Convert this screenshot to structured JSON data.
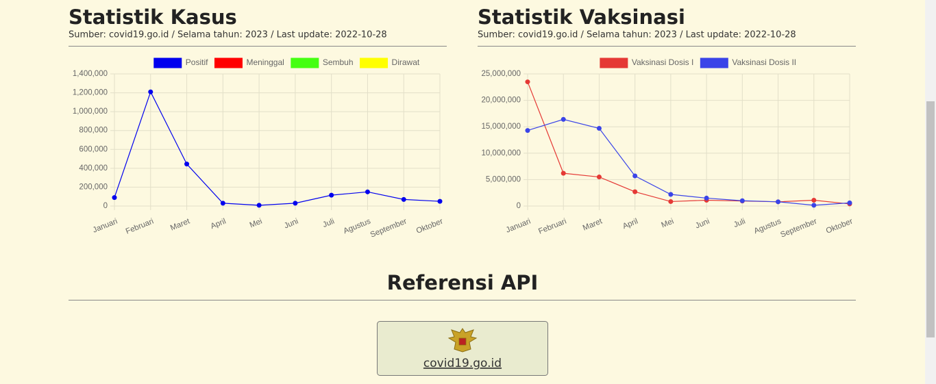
{
  "chart_data": [
    {
      "type": "line",
      "title": "Statistik Kasus",
      "subtitle": "Sumber: covid19.go.id / Selama tahun: 2023 / Last update: 2022-10-28",
      "categories": [
        "Januari",
        "Februari",
        "Maret",
        "April",
        "Mei",
        "Juni",
        "Juli",
        "Agustus",
        "September",
        "Oktober"
      ],
      "series": [
        {
          "name": "Positif",
          "color": "#0000ee",
          "values": [
            90000,
            1210000,
            445000,
            30000,
            8000,
            30000,
            115000,
            150000,
            70000,
            50000
          ]
        },
        {
          "name": "Meninggal",
          "color": "#ff0000",
          "values": [
            null,
            null,
            null,
            null,
            null,
            null,
            null,
            null,
            null,
            null
          ]
        },
        {
          "name": "Sembuh",
          "color": "#44ff11",
          "values": [
            null,
            null,
            null,
            null,
            null,
            null,
            null,
            null,
            null,
            null
          ]
        },
        {
          "name": "Dirawat",
          "color": "#ffff00",
          "values": [
            null,
            null,
            null,
            null,
            null,
            null,
            null,
            null,
            null,
            null
          ]
        }
      ],
      "ylim": [
        0,
        1400000
      ],
      "yticks": [
        0,
        {
          "value": 200000,
          "label": "200,000"
        },
        {
          "value": 400000,
          "label": "400,000"
        },
        {
          "value": 600000,
          "label": "600,000"
        },
        {
          "value": 800000,
          "label": "800,000"
        },
        {
          "value": 1000000,
          "label": "1,000,000"
        },
        {
          "value": 1200000,
          "label": "1,200,000"
        },
        {
          "value": 1400000,
          "label": "1,400,000"
        }
      ],
      "grid": true
    },
    {
      "type": "line",
      "title": "Statistik Vaksinasi",
      "subtitle": "Sumber: covid19.go.id / Selama tahun: 2023 / Last update: 2022-10-28",
      "categories": [
        "Januari",
        "Februari",
        "Maret",
        "April",
        "Mei",
        "Juni",
        "Juli",
        "Agustus",
        "September",
        "Oktober"
      ],
      "series": [
        {
          "name": "Vaksinasi Dosis I",
          "color": "#e53935",
          "values": [
            23500000,
            6200000,
            5500000,
            2700000,
            850000,
            1100000,
            950000,
            800000,
            1100000,
            400000
          ]
        },
        {
          "name": "Vaksinasi Dosis II",
          "color": "#3a44e8",
          "values": [
            14300000,
            16400000,
            14700000,
            5700000,
            2200000,
            1500000,
            1000000,
            800000,
            150000,
            600000
          ]
        }
      ],
      "ylim": [
        0,
        25000000
      ],
      "yticks": [
        0,
        {
          "value": 5000000,
          "label": "5,000,000"
        },
        {
          "value": 10000000,
          "label": "10,000,000"
        },
        {
          "value": 15000000,
          "label": "15,000,000"
        },
        {
          "value": 20000000,
          "label": "20,000,000"
        },
        {
          "value": 25000000,
          "label": "25,000,000"
        }
      ],
      "grid": true
    }
  ],
  "reference": {
    "title": "Referensi API",
    "link": "covid19.go.id"
  }
}
